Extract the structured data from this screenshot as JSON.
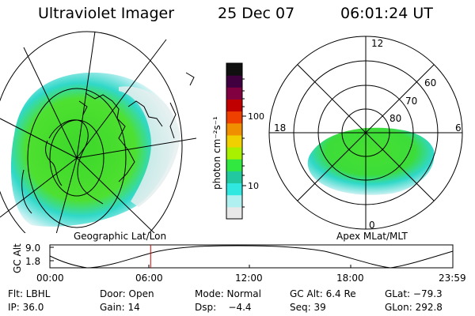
{
  "header": {
    "instrument": "Ultraviolet Imager",
    "date": "25 Dec 07",
    "time": "06:01:24 UT"
  },
  "colorbar": {
    "unit_label": "photon cm⁻²s⁻¹",
    "tick_100": "100",
    "tick_10": "10",
    "colors": [
      "#e8e8e8",
      "#b0f0f0",
      "#30e8e0",
      "#22c8a0",
      "#30e840",
      "#a8f000",
      "#f0d000",
      "#f09000",
      "#f04000",
      "#c00000",
      "#800040",
      "#400040",
      "#101010"
    ]
  },
  "left_map": {
    "caption": "Geographic Lat/Lon"
  },
  "right_map": {
    "caption": "Apex MLat/MLT",
    "mlt_top": "12",
    "mlt_left": "18",
    "mlt_right": "6",
    "mlt_bottom": "0",
    "lat_60": "60",
    "lat_70": "70",
    "lat_80": "80"
  },
  "altitude_plot": {
    "y_label": "GC Alt",
    "y_max": "9.0",
    "y_min": "1.8",
    "x_ticks": [
      "00:00",
      "06:00",
      "12:00",
      "18:00",
      "23:59"
    ],
    "marker_time_fraction": 0.25,
    "marker_color": "#d00000"
  },
  "footer": {
    "flt": "Flt: LBHL",
    "door": "Door: Open",
    "mode": "Mode: Normal",
    "gcalt": "GC Alt: 6.4 Re",
    "glat": "GLat: −79.3",
    "ip": "IP: 36.0",
    "gain": "Gain: 14",
    "dsp": "Dsp:    −4.4",
    "seq": "Seq: 39",
    "glon": "GLon: 292.8"
  }
}
